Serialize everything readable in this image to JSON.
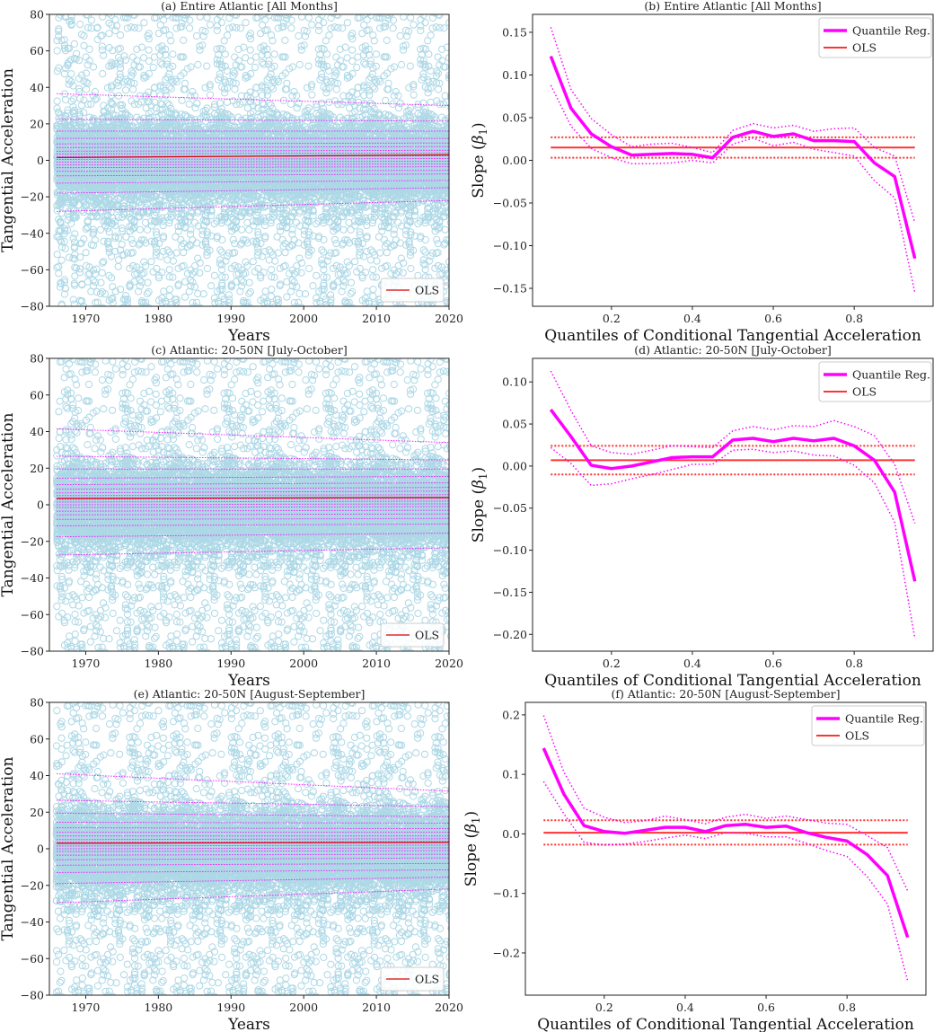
{
  "colors": {
    "scatter": "#add8e6",
    "quantile": "#ff00ff",
    "ols": "#ff3333",
    "ols_scatter": "#dd0000",
    "axis": "#222222"
  },
  "chart_data": [
    {
      "id": "a",
      "type": "scatter",
      "title": "(a) Entire Atlantic [All Months]",
      "xlabel": "Years",
      "ylabel": "Tangential Acceleration",
      "xlim": [
        1965,
        2020
      ],
      "ylim": [
        -80,
        80
      ],
      "xticks": [
        "1970",
        "1980",
        "1990",
        "2000",
        "2010",
        "2020"
      ],
      "yticks": [
        "80",
        "60",
        "40",
        "20",
        "0",
        "−20",
        "−40",
        "−60",
        "−80"
      ],
      "legend": {
        "entries": [
          "OLS"
        ],
        "placement": "lower-right"
      },
      "ols_line": {
        "start": [
          1966,
          1.5
        ],
        "end": [
          2020,
          3.0
        ]
      },
      "quantile_lines": [
        [
          36.5,
          30.0
        ],
        [
          22.5,
          21.5
        ],
        [
          16.0,
          16.0
        ],
        [
          12.0,
          12.0
        ],
        [
          9.0,
          9.5
        ],
        [
          7.0,
          7.5
        ],
        [
          5.0,
          5.5
        ],
        [
          3.5,
          4.0
        ],
        [
          2.0,
          2.5
        ],
        [
          0.5,
          1.0
        ],
        [
          -1.0,
          -0.5
        ],
        [
          -2.5,
          -2.0
        ],
        [
          -4.0,
          -3.5
        ],
        [
          -6.0,
          -5.5
        ],
        [
          -8.5,
          -7.5
        ],
        [
          -12.5,
          -11.0
        ],
        [
          -18.0,
          -15.0
        ],
        [
          -28.0,
          -22.0
        ]
      ]
    },
    {
      "id": "b",
      "type": "line",
      "title": "(b) Entire Atlantic [All Months]",
      "xlabel": "Quantiles of Conditional Tangential Acceleration",
      "ylabel": "Slope (β₁)",
      "ylabel_main": "Slope (",
      "ylabel_beta": "β",
      "ylabel_sub": "1",
      "ylabel_close": ")",
      "xlim": [
        0.005,
        0.995
      ],
      "ylim": [
        -0.171,
        0.171
      ],
      "xticks": [
        0.2,
        0.4,
        0.6,
        0.8
      ],
      "xtick_labels": [
        "0.2",
        "0.4",
        "0.6",
        "0.8"
      ],
      "yticks": [
        0.15,
        0.1,
        0.05,
        0.0,
        -0.05,
        -0.1,
        -0.15
      ],
      "ytick_labels": [
        "0.15",
        "0.10",
        "0.05",
        "0.00",
        "−0.05",
        "−0.10",
        "−0.15"
      ],
      "legend": {
        "entries": [
          "Quantile Reg.",
          "OLS"
        ],
        "placement": "upper-right"
      },
      "x": [
        0.05,
        0.1,
        0.15,
        0.2,
        0.25,
        0.3,
        0.35,
        0.4,
        0.45,
        0.5,
        0.55,
        0.6,
        0.65,
        0.7,
        0.75,
        0.8,
        0.85,
        0.9,
        0.95
      ],
      "series": [
        {
          "name": "Quantile Reg.",
          "values": [
            0.122,
            0.061,
            0.031,
            0.016,
            0.006,
            0.007,
            0.008,
            0.007,
            0.003,
            0.027,
            0.034,
            0.028,
            0.031,
            0.023,
            0.023,
            0.022,
            -0.003,
            -0.019,
            -0.115
          ]
        },
        {
          "name": "Quantile Reg. upper CI",
          "values": [
            0.156,
            0.083,
            0.049,
            0.03,
            0.016,
            0.019,
            0.02,
            0.015,
            0.009,
            0.035,
            0.043,
            0.038,
            0.041,
            0.034,
            0.037,
            0.038,
            0.015,
            0.005,
            -0.073
          ]
        },
        {
          "name": "Quantile Reg. lower CI",
          "values": [
            0.088,
            0.04,
            0.014,
            0.003,
            -0.004,
            -0.004,
            -0.003,
            0.0,
            -0.003,
            0.019,
            0.026,
            0.017,
            0.021,
            0.013,
            0.009,
            0.005,
            -0.024,
            -0.044,
            -0.155
          ]
        },
        {
          "name": "OLS",
          "value": 0.015,
          "ci_upper": 0.027,
          "ci_lower": 0.003
        }
      ]
    },
    {
      "id": "c",
      "type": "scatter",
      "title": "(c) Atlantic: 20-50N [July-October]",
      "xlabel": "Years",
      "ylabel": "Tangential Acceleration",
      "xlim": [
        1965,
        2020
      ],
      "ylim": [
        -80,
        80
      ],
      "xticks": [
        "1970",
        "1980",
        "1990",
        "2000",
        "2010",
        "2020"
      ],
      "yticks": [
        "80",
        "60",
        "40",
        "20",
        "0",
        "−20",
        "−40",
        "−60",
        "−80"
      ],
      "legend": {
        "entries": [
          "OLS"
        ],
        "placement": "lower-right"
      },
      "ols_line": {
        "start": [
          1966,
          3.5
        ],
        "end": [
          2020,
          4.0
        ]
      },
      "quantile_lines": [
        [
          41.5,
          34.0
        ],
        [
          26.5,
          24.5
        ],
        [
          19.5,
          19.5
        ],
        [
          14.5,
          15.5
        ],
        [
          11.0,
          12.0
        ],
        [
          8.5,
          9.5
        ],
        [
          6.5,
          7.5
        ],
        [
          5.0,
          5.5
        ],
        [
          3.0,
          3.5
        ],
        [
          1.5,
          2.0
        ],
        [
          0.0,
          0.5
        ],
        [
          -1.5,
          -1.0
        ],
        [
          -3.5,
          -3.0
        ],
        [
          -5.5,
          -5.0
        ],
        [
          -8.0,
          -7.5
        ],
        [
          -11.5,
          -10.5
        ],
        [
          -17.5,
          -15.5
        ],
        [
          -27.5,
          -23.5
        ]
      ]
    },
    {
      "id": "d",
      "type": "line",
      "title": "(d) Atlantic: 20-50N [July-October]",
      "xlabel": "Quantiles of Conditional Tangential Acceleration",
      "ylabel": "Slope (β₁)",
      "ylabel_main": "Slope (",
      "ylabel_beta": "β",
      "ylabel_sub": "1",
      "ylabel_close": ")",
      "xlim": [
        0.005,
        0.995
      ],
      "ylim": [
        -0.22,
        0.128
      ],
      "xticks": [
        0.2,
        0.4,
        0.6,
        0.8
      ],
      "xtick_labels": [
        "0.2",
        "0.4",
        "0.6",
        "0.8"
      ],
      "yticks": [
        0.1,
        0.05,
        0.0,
        -0.05,
        -0.1,
        -0.15,
        -0.2
      ],
      "ytick_labels": [
        "0.10",
        "0.05",
        "0.00",
        "−0.05",
        "−0.10",
        "−0.15",
        "−0.20"
      ],
      "legend": {
        "entries": [
          "Quantile Reg.",
          "OLS"
        ],
        "placement": "upper-right"
      },
      "x": [
        0.05,
        0.1,
        0.15,
        0.2,
        0.25,
        0.3,
        0.35,
        0.4,
        0.45,
        0.5,
        0.55,
        0.6,
        0.65,
        0.7,
        0.75,
        0.8,
        0.85,
        0.9,
        0.95
      ],
      "series": [
        {
          "name": "Quantile Reg.",
          "values": [
            0.067,
            0.035,
            0.001,
            -0.003,
            0.0,
            0.005,
            0.01,
            0.011,
            0.011,
            0.031,
            0.033,
            0.029,
            0.033,
            0.03,
            0.033,
            0.024,
            0.007,
            -0.031,
            -0.137
          ]
        },
        {
          "name": "Quantile Reg. upper CI",
          "values": [
            0.113,
            0.066,
            0.024,
            0.016,
            0.014,
            0.019,
            0.024,
            0.023,
            0.022,
            0.042,
            0.047,
            0.043,
            0.048,
            0.047,
            0.054,
            0.047,
            0.036,
            0.002,
            -0.068
          ]
        },
        {
          "name": "Quantile Reg. lower CI",
          "values": [
            0.022,
            0.003,
            -0.023,
            -0.021,
            -0.015,
            -0.01,
            -0.004,
            0.002,
            0.002,
            0.019,
            0.02,
            0.016,
            0.018,
            0.013,
            0.012,
            0.001,
            -0.02,
            -0.067,
            -0.205
          ]
        },
        {
          "name": "OLS",
          "value": 0.007,
          "ci_upper": 0.024,
          "ci_lower": -0.01
        }
      ]
    },
    {
      "id": "e",
      "type": "scatter",
      "title": "(e) Atlantic: 20-50N [August-September]",
      "xlabel": "Years",
      "ylabel": "Tangential Acceleration",
      "xlim": [
        1965,
        2020
      ],
      "ylim": [
        -80,
        80
      ],
      "xticks": [
        "1970",
        "1980",
        "1990",
        "2000",
        "2010",
        "2020"
      ],
      "yticks": [
        "80",
        "60",
        "40",
        "20",
        "0",
        "−20",
        "−40",
        "−60",
        "−80"
      ],
      "legend": {
        "entries": [
          "OLS"
        ],
        "placement": "lower-right"
      },
      "ols_line": {
        "start": [
          1966,
          3.0
        ],
        "end": [
          2020,
          3.5
        ]
      },
      "quantile_lines": [
        [
          41.0,
          31.5
        ],
        [
          26.5,
          23.0
        ],
        [
          19.5,
          17.5
        ],
        [
          14.5,
          14.0
        ],
        [
          11.5,
          11.0
        ],
        [
          9.0,
          9.0
        ],
        [
          7.0,
          7.0
        ],
        [
          5.0,
          5.5
        ],
        [
          3.5,
          4.0
        ],
        [
          1.5,
          2.0
        ],
        [
          0.0,
          0.5
        ],
        [
          -1.5,
          -1.0
        ],
        [
          -3.5,
          -3.0
        ],
        [
          -6.0,
          -5.0
        ],
        [
          -9.0,
          -8.0
        ],
        [
          -13.0,
          -11.5
        ],
        [
          -19.0,
          -15.5
        ],
        [
          -29.5,
          -22.0
        ]
      ]
    },
    {
      "id": "f",
      "type": "line",
      "title": "(f) Atlantic: 20-50N [August-September]",
      "xlabel": "Quantiles of Conditional Tangential Acceleration",
      "ylabel": "Slope (β₁)",
      "ylabel_main": "Slope (",
      "ylabel_beta": "β",
      "ylabel_sub": "1",
      "ylabel_close": ")",
      "xlim": [
        0.005,
        0.995
      ],
      "ylim": [
        -0.271,
        0.221
      ],
      "xticks": [
        0.2,
        0.4,
        0.6,
        0.8
      ],
      "xtick_labels": [
        "0.2",
        "0.4",
        "0.6",
        "0.8"
      ],
      "yticks": [
        0.2,
        0.1,
        0.0,
        -0.1,
        -0.2
      ],
      "ytick_labels": [
        "0.2",
        "0.1",
        "0.0",
        "−0.1",
        "−0.2"
      ],
      "legend": {
        "entries": [
          "Quantile Reg.",
          "OLS"
        ],
        "placement": "upper-right"
      },
      "x": [
        0.05,
        0.1,
        0.15,
        0.2,
        0.25,
        0.3,
        0.35,
        0.4,
        0.45,
        0.5,
        0.55,
        0.6,
        0.65,
        0.7,
        0.75,
        0.8,
        0.85,
        0.9,
        0.95
      ],
      "series": [
        {
          "name": "Quantile Reg.",
          "values": [
            0.144,
            0.067,
            0.014,
            0.004,
            0.001,
            0.006,
            0.011,
            0.011,
            0.004,
            0.014,
            0.016,
            0.011,
            0.013,
            0.002,
            -0.006,
            -0.012,
            -0.035,
            -0.07,
            -0.174
          ]
        },
        {
          "name": "Quantile Reg. upper CI",
          "values": [
            0.199,
            0.104,
            0.043,
            0.028,
            0.019,
            0.022,
            0.03,
            0.024,
            0.017,
            0.028,
            0.033,
            0.026,
            0.03,
            0.024,
            0.018,
            0.016,
            -0.003,
            -0.023,
            -0.096
          ]
        },
        {
          "name": "Quantile Reg. lower CI",
          "values": [
            0.088,
            0.034,
            -0.014,
            -0.019,
            -0.017,
            -0.013,
            -0.007,
            -0.002,
            -0.008,
            0.002,
            0.001,
            -0.005,
            -0.005,
            -0.016,
            -0.028,
            -0.038,
            -0.072,
            -0.118,
            -0.247
          ]
        },
        {
          "name": "OLS",
          "value": 0.002,
          "ci_upper": 0.023,
          "ci_lower": -0.018
        }
      ]
    }
  ]
}
